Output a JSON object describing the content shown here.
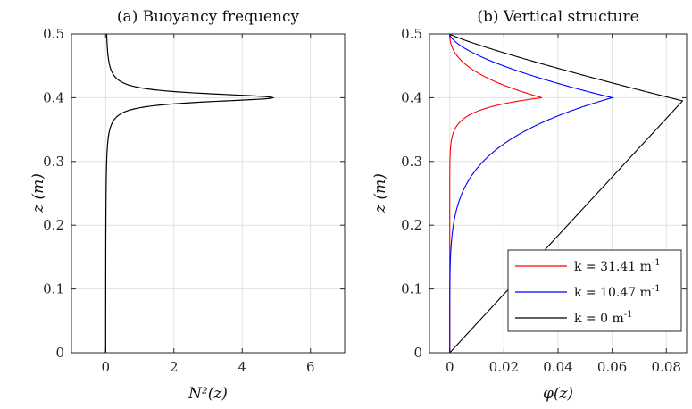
{
  "chart_data": [
    {
      "type": "line",
      "title": "(a) Buoyancy frequency",
      "xlabel": "N²(z)",
      "ylabel": "z (m)",
      "xlim": [
        -1,
        7
      ],
      "ylim": [
        0,
        0.5
      ],
      "xticks": [
        0,
        2,
        4,
        6
      ],
      "yticks": [
        0,
        0.1,
        0.2,
        0.3,
        0.4,
        0.5
      ],
      "grid": true,
      "series": [
        {
          "color": "#000000",
          "peak": 4.9,
          "center": 0.4,
          "width": 0.008,
          "note_values": "N² ≈ 0 except a sharp peak of about 4.9 at z = 0.4"
        }
      ]
    },
    {
      "type": "line",
      "title": "(b) Vertical structure",
      "xlabel": "φ(z)",
      "ylabel": "z (m)",
      "xlim": [
        -0.0075,
        0.0875
      ],
      "ylim": [
        0,
        0.5
      ],
      "xticks": [
        0,
        0.02,
        0.04,
        0.06,
        0.08
      ],
      "yticks": [
        0,
        0.1,
        0.2,
        0.3,
        0.4,
        0.5
      ],
      "grid": true,
      "legend_position": "bottom-right",
      "series": [
        {
          "name": "k = 31.41 m",
          "superscript": "-1",
          "color": "#ff0000",
          "peak_phi": 0.034,
          "peak_z": 0.4
        },
        {
          "name": "k = 10.47 m",
          "superscript": "-1",
          "color": "#0000ff",
          "peak_phi": 0.06,
          "peak_z": 0.4
        },
        {
          "name": "k = 0 m",
          "superscript": "-1",
          "color": "#000000",
          "peak_phi": 0.086,
          "peak_z": 0.395
        }
      ]
    }
  ]
}
